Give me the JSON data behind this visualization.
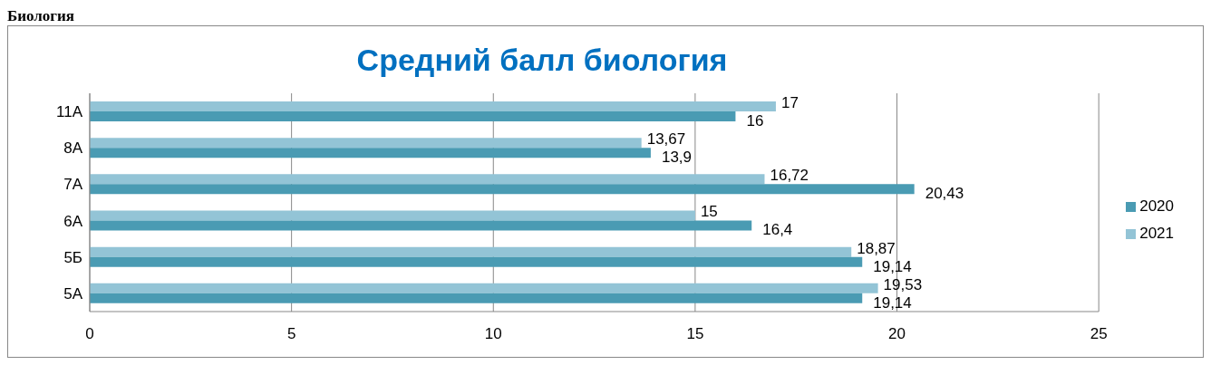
{
  "chart_data": {
    "type": "bar",
    "orientation": "horizontal",
    "title": "Средний балл биология",
    "annotations": [
      "Биология"
    ],
    "categories": [
      "11А",
      "8А",
      "7А",
      "6А",
      "5Б",
      "5А"
    ],
    "series": [
      {
        "name": "2021",
        "color": "#93c4d6",
        "values": [
          17,
          13.67,
          16.72,
          15,
          18.87,
          19.53
        ],
        "value_labels": [
          "17",
          "13,67",
          "16,72",
          "15",
          "18,87",
          "19,53"
        ]
      },
      {
        "name": "2020",
        "color": "#4a9bb3",
        "values": [
          16,
          13.9,
          20.43,
          16.4,
          19.14,
          19.14
        ],
        "value_labels": [
          "16",
          "13,9",
          "20,43",
          "16,4",
          "19,14",
          "19,14"
        ]
      }
    ],
    "xlim": [
      0,
      25
    ],
    "xticks": [
      0,
      5,
      10,
      15,
      20,
      25
    ],
    "grid": "x",
    "legend": "right"
  }
}
